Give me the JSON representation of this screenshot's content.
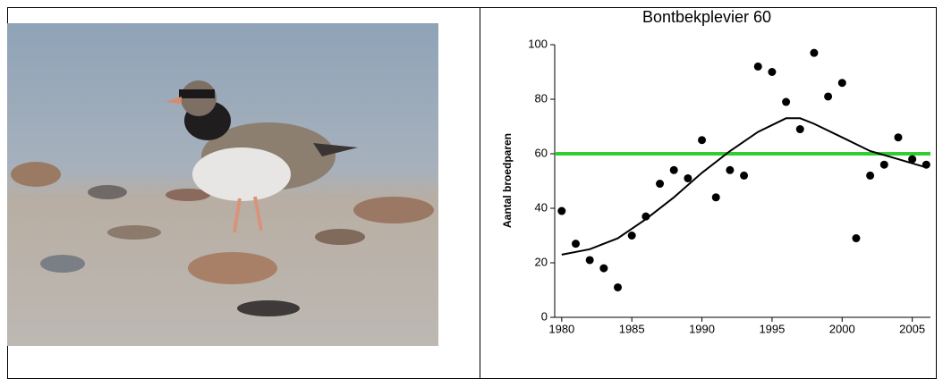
{
  "chart_data": {
    "type": "scatter",
    "title": "Bontbekplevier 60",
    "y_label": "Aantal broedparen",
    "x": [
      1980,
      1981,
      1982,
      1983,
      1984,
      1985,
      1986,
      1987,
      1988,
      1989,
      1990,
      1991,
      1992,
      1993,
      1994,
      1995,
      1996,
      1997,
      1998,
      1999,
      2000,
      2001,
      2002,
      2003,
      2004,
      2005,
      2006
    ],
    "values": [
      39,
      27,
      21,
      18,
      11,
      30,
      37,
      49,
      54,
      51,
      65,
      44,
      54,
      52,
      92,
      90,
      79,
      69,
      97,
      81,
      86,
      29,
      52,
      56,
      66,
      58,
      56
    ],
    "color": "#000000",
    "trend": {
      "x": [
        1980,
        1982,
        1984,
        1986,
        1988,
        1990,
        1992,
        1994,
        1996,
        1997,
        1998,
        2000,
        2002,
        2004,
        2006
      ],
      "values": [
        23,
        25,
        29,
        36,
        44,
        53,
        61,
        68,
        73,
        73,
        71,
        66,
        61,
        58,
        55
      ],
      "color": "#000000"
    },
    "reference_line": {
      "value": 60,
      "color": "#33cc33"
    },
    "xlim": [
      1979.5,
      2006.3
    ],
    "xticks": [
      1980,
      1985,
      1990,
      1995,
      2000,
      2005
    ],
    "ylim": [
      0,
      100
    ],
    "yticks": [
      0,
      20,
      40,
      60,
      80,
      100
    ]
  }
}
